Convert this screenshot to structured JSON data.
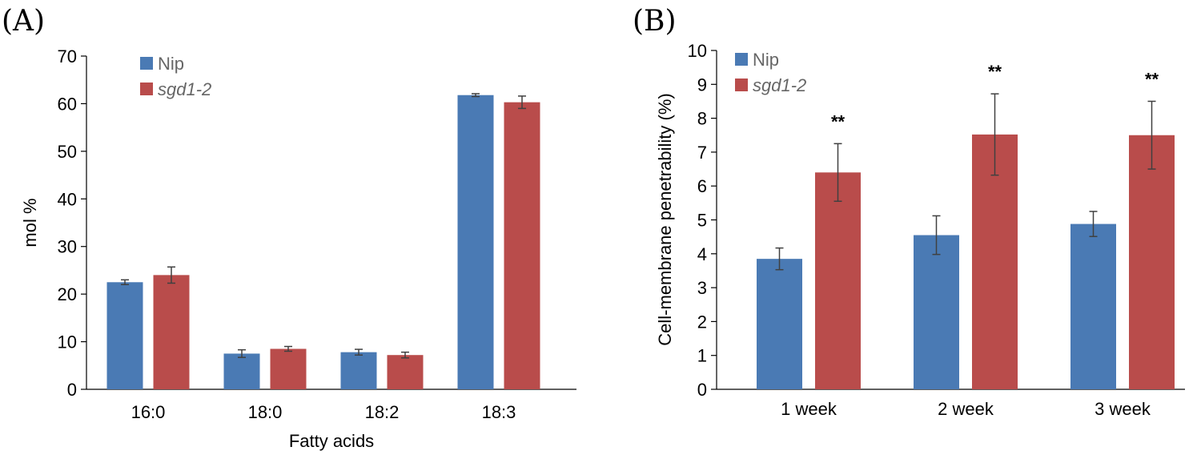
{
  "figure": {
    "label_a": "(A)",
    "label_b": "(B)"
  },
  "colors": {
    "nip": "#4a7ab4",
    "sgd": "#b94c4b",
    "axis": "#000000",
    "error": "#404040"
  },
  "chart_data": [
    {
      "panel": "(A)",
      "type": "bar",
      "title": "",
      "xlabel": "Fatty acids",
      "ylabel": "mol %",
      "ylim": [
        0,
        70
      ],
      "yticks": [
        0,
        10,
        20,
        30,
        40,
        50,
        60,
        70
      ],
      "categories": [
        "16:0",
        "18:0",
        "18:2",
        "18:3"
      ],
      "legend_position": "top-left",
      "series": [
        {
          "name": "Nip",
          "italic": false,
          "values": [
            22.5,
            7.5,
            7.8,
            61.8
          ],
          "errors": [
            0.5,
            0.8,
            0.6,
            0.3
          ]
        },
        {
          "name": "sgd1-2",
          "italic": true,
          "values": [
            24.0,
            8.5,
            7.2,
            60.3
          ],
          "errors": [
            1.7,
            0.5,
            0.6,
            1.3
          ]
        }
      ],
      "annotations": []
    },
    {
      "panel": "(B)",
      "type": "bar",
      "title": "",
      "xlabel": "",
      "ylabel": "Cell-membrane penetrability (%)",
      "ylim": [
        0,
        10
      ],
      "yticks": [
        0,
        1,
        2,
        3,
        4,
        5,
        6,
        7,
        8,
        9,
        10
      ],
      "categories": [
        "1 week",
        "2 week",
        "3 week"
      ],
      "legend_position": "top-left",
      "series": [
        {
          "name": "Nip",
          "italic": false,
          "values": [
            3.85,
            4.55,
            4.88
          ],
          "errors": [
            0.32,
            0.57,
            0.37
          ]
        },
        {
          "name": "sgd1-2",
          "italic": true,
          "values": [
            6.4,
            7.52,
            7.5
          ],
          "errors": [
            0.85,
            1.2,
            1.0
          ]
        }
      ],
      "annotations": [
        "**",
        "**",
        "**"
      ]
    }
  ]
}
